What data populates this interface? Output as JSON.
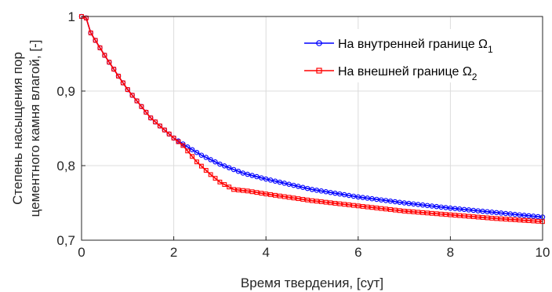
{
  "chart_data": {
    "type": "line",
    "xlabel": "Время твердения, [сут]",
    "ylabel": [
      "Степень насыщения пор",
      "цементного камня влагой, [-]"
    ],
    "xlim": [
      0,
      10
    ],
    "ylim": [
      0.7,
      1.0
    ],
    "xticks": [
      0,
      2,
      4,
      6,
      8,
      10
    ],
    "xtick_labels": [
      "0",
      "2",
      "4",
      "6",
      "8",
      "10"
    ],
    "yticks": [
      0.7,
      0.8,
      0.9,
      1.0
    ],
    "ytick_labels": [
      "0,7",
      "0,8",
      "0,9",
      "1"
    ],
    "grid": true,
    "legend_position": "top-right",
    "series": [
      {
        "name": "На внутренней границе Ω",
        "name_subscript": "1",
        "color": "#0000ff",
        "marker": "circle",
        "x": [
          0,
          0.1,
          0.2,
          0.5,
          0.8,
          1.0,
          1.5,
          2.0,
          2.3,
          2.6,
          3.0,
          3.5,
          4.0,
          5.0,
          6.0,
          7.0,
          8.0,
          9.0,
          10.0
        ],
        "values": [
          1.0,
          0.998,
          0.978,
          0.948,
          0.92,
          0.902,
          0.864,
          0.837,
          0.825,
          0.814,
          0.802,
          0.79,
          0.782,
          0.768,
          0.758,
          0.75,
          0.743,
          0.737,
          0.731
        ]
      },
      {
        "name": "На внешней границе Ω",
        "name_subscript": "2",
        "color": "#ff0000",
        "marker": "square",
        "x": [
          0,
          0.1,
          0.2,
          0.5,
          0.8,
          1.0,
          1.5,
          2.0,
          2.2,
          2.5,
          2.8,
          3.0,
          3.3,
          3.6,
          4.0,
          5.0,
          6.0,
          7.0,
          8.0,
          9.0,
          10.0
        ],
        "values": [
          1.0,
          0.998,
          0.978,
          0.948,
          0.92,
          0.902,
          0.864,
          0.837,
          0.827,
          0.805,
          0.788,
          0.778,
          0.768,
          0.766,
          0.762,
          0.753,
          0.746,
          0.739,
          0.734,
          0.729,
          0.725
        ]
      }
    ]
  }
}
